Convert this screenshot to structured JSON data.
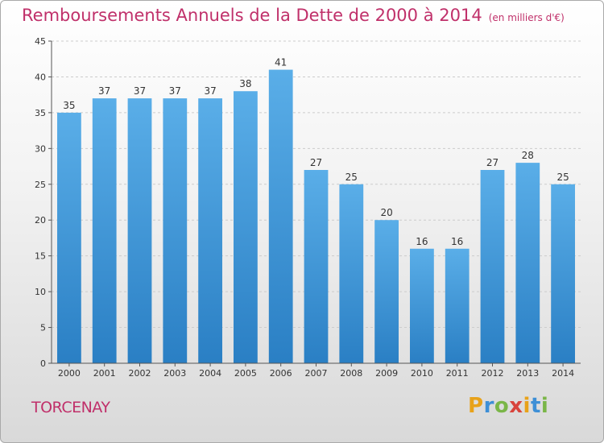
{
  "title": "Remboursements Annuels de la Dette de 2000 à 2014",
  "unit_note": "(en milliers d'€)",
  "commune": "TORCENAY",
  "brand": {
    "text": "Proxiti",
    "letters": [
      "P",
      "r",
      "o",
      "x",
      "i",
      "t",
      "i"
    ]
  },
  "colors": {
    "title": "#c0306a",
    "bar_top": "#5aaee8",
    "bar_bottom": "#2a7fc4",
    "grid": "#cccccc"
  },
  "chart_data": {
    "type": "bar",
    "categories": [
      "2000",
      "2001",
      "2002",
      "2003",
      "2004",
      "2005",
      "2006",
      "2007",
      "2008",
      "2009",
      "2010",
      "2011",
      "2012",
      "2013",
      "2014"
    ],
    "values": [
      35,
      37,
      37,
      37,
      37,
      38,
      41,
      27,
      25,
      20,
      16,
      16,
      27,
      28,
      25
    ],
    "ylim": [
      0,
      45
    ],
    "yticks": [
      0,
      5,
      10,
      15,
      20,
      25,
      30,
      35,
      40,
      45
    ],
    "grid": true,
    "data_labels": true
  }
}
